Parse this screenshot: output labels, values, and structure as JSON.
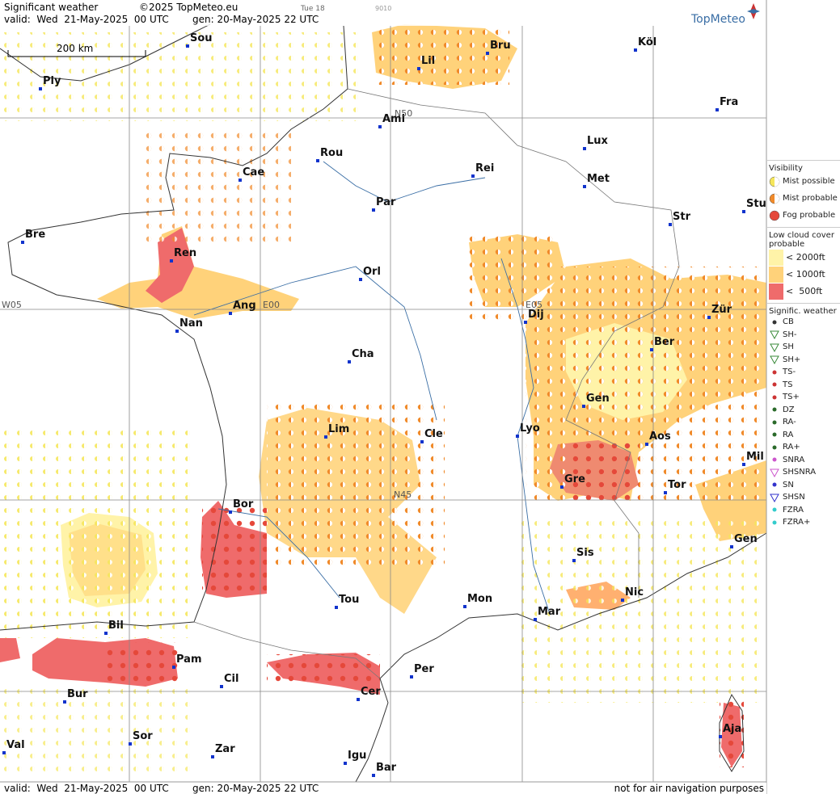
{
  "header": {
    "title": "Significant weather",
    "copyright": "©2025 TopMeteo.eu",
    "run": "Tue 18",
    "code": "9010",
    "valid": "valid:  Wed  21-May-2025  00 UTC",
    "generated": "gen: 20-May-2025 22 UTC",
    "brand": "TopMeteo"
  },
  "map": {
    "scale": "200 km",
    "grid_labels": [
      "N50",
      "N45",
      "W05",
      "E00",
      "E05"
    ],
    "cities": [
      "Sou",
      "Ply",
      "Bru",
      "Köl",
      "Lil",
      "Ami",
      "Fra",
      "Lux",
      "Rou",
      "Cae",
      "Rei",
      "Met",
      "Par",
      "Bre",
      "Str",
      "Stu",
      "Ren",
      "Orl",
      "Dij",
      "Zür",
      "Ang",
      "Nan",
      "Ber",
      "Cha",
      "Gen",
      "Lyo",
      "Lim",
      "Cle",
      "Aos",
      "Mil",
      "Gre",
      "Tor",
      "Bor",
      "Gen",
      "Sis",
      "Nic",
      "Tou",
      "Mon",
      "Mar",
      "Bil",
      "Pam",
      "Cil",
      "Per",
      "Bur",
      "Cer",
      "Sor",
      "Aja",
      "Val",
      "Zar",
      "Igu",
      "Bar"
    ]
  },
  "legend": {
    "visibility": {
      "title": "Visibility",
      "items": [
        "Mist possible",
        "Mist probable",
        "Fog probable"
      ]
    },
    "low_cloud": {
      "title": "Low cloud cover probable",
      "items": [
        "< 2000ft",
        "< 1000ft",
        "<  500ft"
      ]
    },
    "weather": {
      "title": "Signific. weather",
      "items": [
        "CB",
        "SH-",
        "SH",
        "SH+",
        "TS-",
        "TS",
        "TS+",
        "DZ",
        "RA-",
        "RA",
        "RA+",
        "SNRA",
        "SHSNRA",
        "SN",
        "SHSN",
        "FZRA",
        "FZRA+"
      ]
    }
  },
  "footer": {
    "valid": "valid:  Wed  21-May-2025  00 UTC",
    "generated": "gen: 20-May-2025 22 UTC",
    "disclaimer": "not for air navigation purposes"
  }
}
